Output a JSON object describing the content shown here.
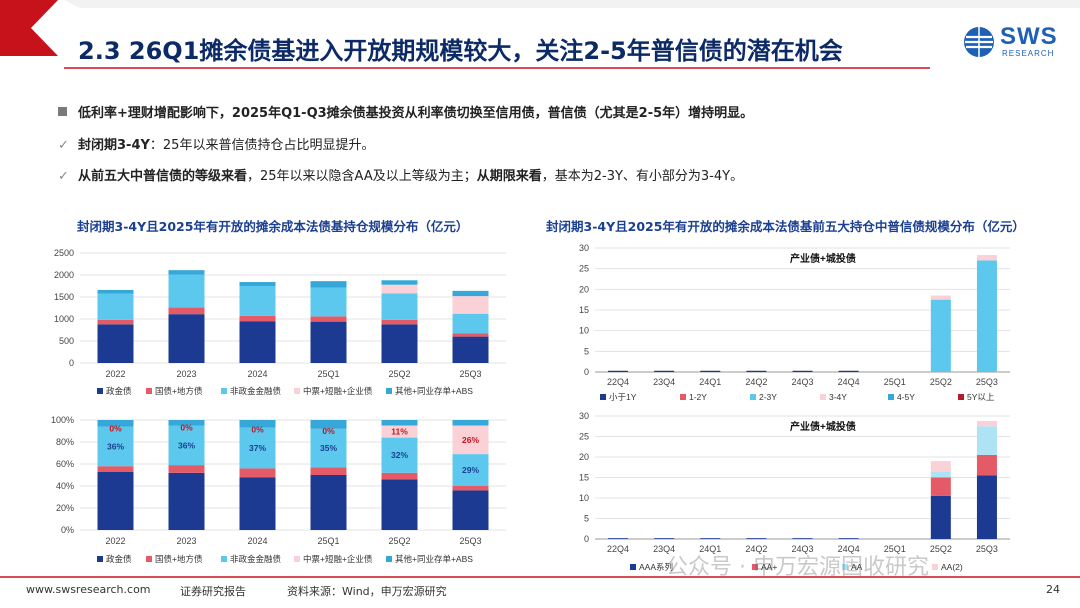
{
  "header": {
    "title": "2.3 26Q1摊余债基进入开放期规模较大，关注2-5年普信债的潜在机会",
    "logo_text": "SWS",
    "logo_sub": "RESEARCH"
  },
  "bullets": [
    {
      "bold_a": "低利率+理财增配影响下，2025年Q1-Q3摊余债基投资从利率债切换至信用债，普信债（尤其是2-5年）增持明显。",
      "text_a": "",
      "bold_b": "",
      "text_b": ""
    },
    {
      "bold_a": "封闭期3-4Y",
      "text_a": "：25年以来普信债持仓占比明显提升。",
      "bold_b": "",
      "text_b": ""
    },
    {
      "bold_a": "从前五大中普信债的等级来看",
      "text_a": "，25年以来以隐含AA及以上等级为主；",
      "bold_b": "从期限来看",
      "text_b": "，基本为2-3Y、有小部分为3-4Y。"
    }
  ],
  "left_title": "封闭期3-4Y且2025年有开放的摊余成本法债基持仓规模分布（亿元）",
  "right_title": "封闭期3-4Y且2025年有开放的摊余成本法债基前五大持仓中普信债规模分布（亿元）",
  "footer": {
    "url": "www.swsresearch.com",
    "report": "证券研究报告",
    "source": "资料来源：Wind，申万宏源研究",
    "watermark": "公众号 · 申万宏源固收研究",
    "page": "24"
  },
  "colors": {
    "navy": "#1c3a91",
    "red": "#e45a66",
    "lightblue": "#5cc8ee",
    "pink": "#f9d1d7",
    "lightcyan": "#aee3f5",
    "teal": "#36a7d9",
    "darkred": "#b01d2b",
    "grey": "#c9c9c9"
  },
  "chart_data": [
    {
      "type": "bar",
      "stacked": true,
      "categories": [
        "2022",
        "2023",
        "2024",
        "25Q1",
        "25Q2",
        "25Q3"
      ],
      "ylim": [
        0,
        2500
      ],
      "yticks": [
        "0",
        "500",
        "1000",
        "1500",
        "2000",
        "2500"
      ],
      "series": [
        {
          "name": "政金债",
          "color": "#1c3a91",
          "values": [
            880,
            1110,
            950,
            940,
            880,
            600
          ]
        },
        {
          "name": "国债+地方债",
          "color": "#e45a66",
          "values": [
            100,
            150,
            120,
            120,
            100,
            70
          ]
        },
        {
          "name": "非政金金融债",
          "color": "#5cc8ee",
          "values": [
            600,
            750,
            680,
            650,
            600,
            450
          ]
        },
        {
          "name": "中票+短融+企业债",
          "color": "#f9d1d7",
          "values": [
            0,
            0,
            0,
            0,
            200,
            400
          ]
        },
        {
          "name": "其他+同业存单+ABS",
          "color": "#36a7d9",
          "values": [
            80,
            100,
            90,
            150,
            100,
            120
          ]
        }
      ]
    },
    {
      "type": "bar",
      "stacked": true,
      "categories": [
        "2022",
        "2023",
        "2024",
        "25Q1",
        "25Q2",
        "25Q3"
      ],
      "ylim": [
        0,
        100
      ],
      "yticks": [
        "0%",
        "20%",
        "40%",
        "60%",
        "80%",
        "100%"
      ],
      "series": [
        {
          "name": "政金债",
          "color": "#1c3a91",
          "values": [
            53,
            52,
            48,
            50,
            46,
            36
          ]
        },
        {
          "name": "国债+地方债",
          "color": "#e45a66",
          "values": [
            5,
            7,
            8,
            7,
            6,
            4
          ]
        },
        {
          "name": "非政金金融债",
          "color": "#5cc8ee",
          "values": [
            36,
            36,
            37,
            35,
            32,
            29
          ]
        },
        {
          "name": "中票+短融+企业债",
          "color": "#f9d1d7",
          "values": [
            0,
            0,
            0,
            0,
            11,
            26
          ]
        },
        {
          "name": "其他+同业存单+ABS",
          "color": "#36a7d9",
          "values": [
            6,
            5,
            7,
            8,
            5,
            5
          ]
        }
      ],
      "data_labels": [
        {
          "series": 2,
          "cat": 0,
          "text": "36%"
        },
        {
          "series": 2,
          "cat": 1,
          "text": "36%"
        },
        {
          "series": 2,
          "cat": 2,
          "text": "37%"
        },
        {
          "series": 2,
          "cat": 3,
          "text": "35%"
        },
        {
          "series": 2,
          "cat": 4,
          "text": "32%"
        },
        {
          "series": 2,
          "cat": 5,
          "text": "29%"
        },
        {
          "series": 3,
          "cat": 0,
          "text": "0%"
        },
        {
          "series": 3,
          "cat": 1,
          "text": "0%"
        },
        {
          "series": 3,
          "cat": 2,
          "text": "0%"
        },
        {
          "series": 3,
          "cat": 3,
          "text": "0%"
        },
        {
          "series": 3,
          "cat": 4,
          "text": "11%"
        },
        {
          "series": 3,
          "cat": 5,
          "text": "26%"
        }
      ]
    },
    {
      "type": "bar",
      "stacked": true,
      "annotation": "产业债+城投债",
      "categories": [
        "22Q4",
        "23Q4",
        "24Q1",
        "24Q2",
        "24Q3",
        "24Q4",
        "25Q1",
        "25Q2",
        "25Q3"
      ],
      "ylim": [
        0,
        30
      ],
      "yticks": [
        "0",
        "5",
        "10",
        "15",
        "20",
        "25",
        "30"
      ],
      "series": [
        {
          "name": "小于1Y",
          "color": "#1c3a91",
          "values": [
            0.3,
            0.3,
            0.3,
            0.3,
            0.3,
            0.3,
            0,
            0,
            0
          ]
        },
        {
          "name": "1-2Y",
          "color": "#e45a66",
          "values": [
            0,
            0,
            0,
            0,
            0,
            0,
            0,
            0,
            0
          ]
        },
        {
          "name": "2-3Y",
          "color": "#5cc8ee",
          "values": [
            0,
            0,
            0,
            0,
            0,
            0,
            0,
            17.5,
            27
          ]
        },
        {
          "name": "3-4Y",
          "color": "#f9d1d7",
          "values": [
            0,
            0,
            0,
            0,
            0,
            0,
            0,
            1,
            1.3
          ]
        },
        {
          "name": "4-5Y",
          "color": "#36a7d9",
          "values": [
            0,
            0,
            0,
            0,
            0,
            0,
            0,
            0,
            0
          ]
        },
        {
          "name": "5Y以上",
          "color": "#b01d2b",
          "values": [
            0,
            0,
            0,
            0,
            0,
            0,
            0,
            0,
            0
          ]
        }
      ]
    },
    {
      "type": "bar",
      "stacked": true,
      "annotation": "产业债+城投债",
      "categories": [
        "22Q4",
        "23Q4",
        "24Q1",
        "24Q2",
        "24Q3",
        "24Q4",
        "25Q1",
        "25Q2",
        "25Q3"
      ],
      "ylim": [
        0,
        30
      ],
      "yticks": [
        "0",
        "5",
        "10",
        "15",
        "20",
        "25",
        "30"
      ],
      "series": [
        {
          "name": "AAA系列",
          "color": "#1c3a91",
          "values": [
            0.2,
            0.2,
            0.2,
            0.2,
            0.2,
            0.2,
            0,
            10.5,
            15.5
          ]
        },
        {
          "name": "AA+",
          "color": "#e45a66",
          "values": [
            0,
            0,
            0,
            0,
            0,
            0,
            0,
            4.5,
            5
          ]
        },
        {
          "name": "AA",
          "color": "#aee3f5",
          "values": [
            0,
            0,
            0,
            0,
            0,
            0,
            0,
            1.5,
            7
          ]
        },
        {
          "name": "AA(2)",
          "color": "#f9d1d7",
          "values": [
            0,
            0,
            0,
            0,
            0,
            0,
            0,
            2.5,
            1.3
          ]
        }
      ]
    }
  ]
}
